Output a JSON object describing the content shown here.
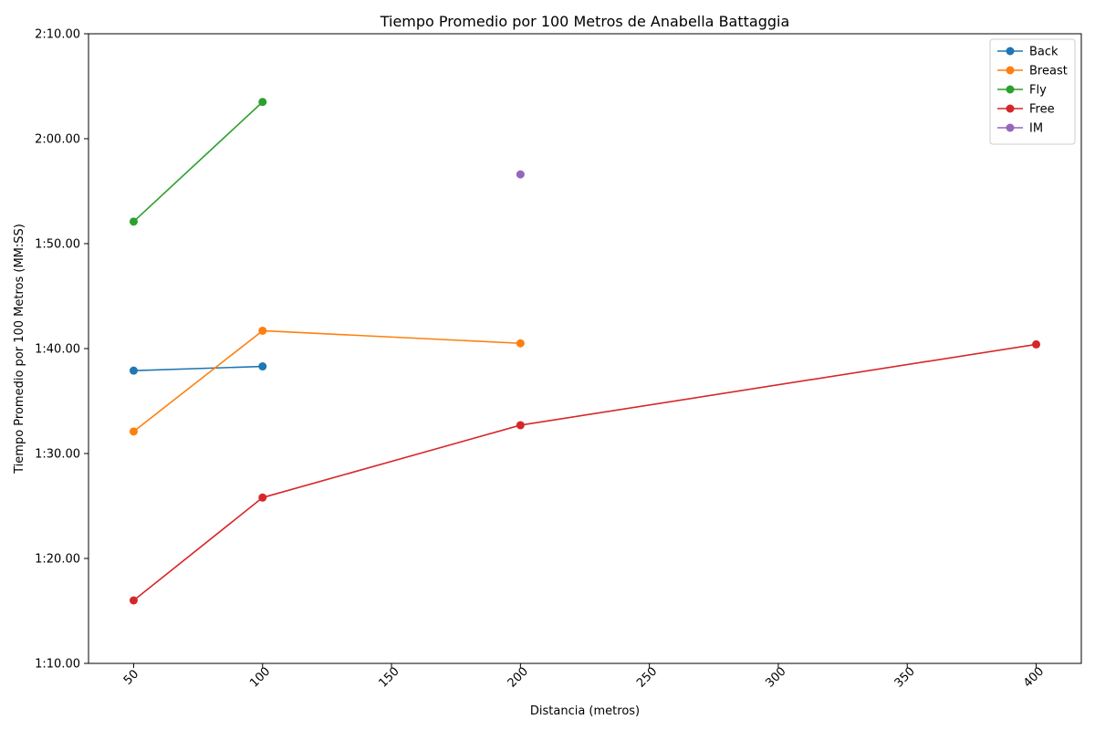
{
  "chart_data": {
    "type": "line",
    "title": "Tiempo Promedio por 100 Metros de Anabella Battaggia",
    "xlabel": "Distancia (metros)",
    "ylabel": "Tiempo Promedio por 100 Metros (MM:SS)",
    "xlim": [
      32.5,
      417.5
    ],
    "ylim": [
      70,
      130
    ],
    "x_ticks": [
      50,
      100,
      150,
      200,
      250,
      300,
      350,
      400
    ],
    "y_ticks": [
      {
        "value": 70,
        "label": "1:10.00"
      },
      {
        "value": 80,
        "label": "1:20.00"
      },
      {
        "value": 90,
        "label": "1:30.00"
      },
      {
        "value": 100,
        "label": "1:40.00"
      },
      {
        "value": 110,
        "label": "1:50.00"
      },
      {
        "value": 120,
        "label": "2:00.00"
      },
      {
        "value": 130,
        "label": "2:10.00"
      }
    ],
    "y_unit": "seconds",
    "grid": false,
    "legend_position": "top-right",
    "series": [
      {
        "name": "Back",
        "color": "#1f77b4",
        "x": [
          50,
          100
        ],
        "y": [
          97.9,
          98.3
        ]
      },
      {
        "name": "Breast",
        "color": "#ff7f0e",
        "x": [
          50,
          100,
          200
        ],
        "y": [
          92.1,
          101.7,
          100.5
        ]
      },
      {
        "name": "Fly",
        "color": "#2ca02c",
        "x": [
          50,
          100
        ],
        "y": [
          112.1,
          123.5
        ]
      },
      {
        "name": "Free",
        "color": "#d62728",
        "x": [
          50,
          100,
          200,
          400
        ],
        "y": [
          76.0,
          85.8,
          92.7,
          100.4
        ]
      },
      {
        "name": "IM",
        "color": "#9467bd",
        "x": [
          200
        ],
        "y": [
          116.6
        ]
      }
    ]
  }
}
